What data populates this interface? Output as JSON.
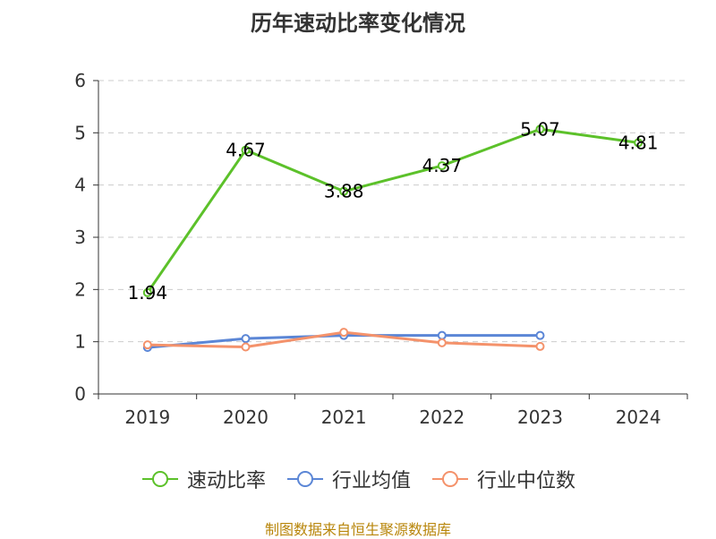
{
  "chart_data": {
    "type": "line",
    "title": "历年速动比率变化情况",
    "categories": [
      "2019",
      "2020",
      "2021",
      "2022",
      "2023",
      "2024"
    ],
    "ylim": [
      0,
      6
    ],
    "yticks": [
      "0",
      "1",
      "2",
      "3",
      "4",
      "5",
      "6"
    ],
    "grid": true,
    "legend_position": "bottom",
    "series": [
      {
        "name": "速动比率",
        "color": "#5cc12a",
        "values": [
          1.94,
          4.67,
          3.88,
          4.37,
          5.07,
          4.81
        ],
        "labels": [
          "1.94",
          "4.67",
          "3.88",
          "4.37",
          "5.07",
          "4.81"
        ]
      },
      {
        "name": "行业均值",
        "color": "#5b86d6",
        "values": [
          0.89,
          1.06,
          1.12,
          1.12,
          1.12,
          null
        ]
      },
      {
        "name": "行业中位数",
        "color": "#f4926b",
        "values": [
          0.94,
          0.9,
          1.18,
          0.98,
          0.91,
          null
        ]
      }
    ]
  },
  "source": "制图数据来自恒生聚源数据库"
}
